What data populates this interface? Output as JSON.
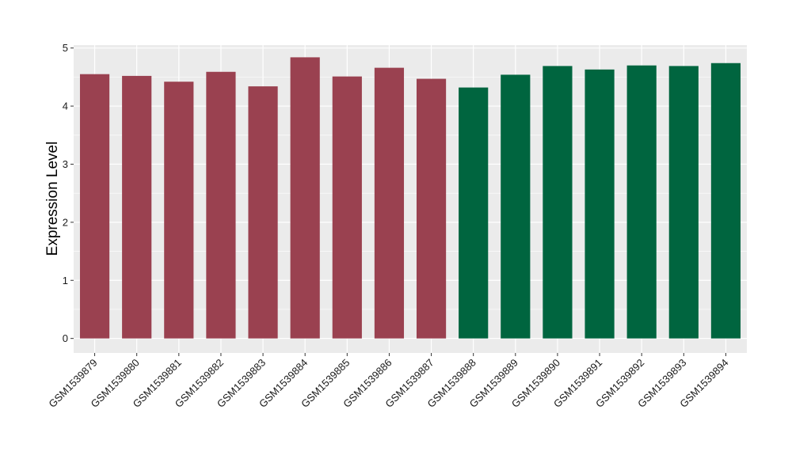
{
  "chart_data": {
    "type": "bar",
    "title": "",
    "xlabel": "",
    "ylabel": "Expression Level",
    "ylim": [
      -0.25,
      5.05
    ],
    "yticks": [
      0,
      1,
      2,
      3,
      4,
      5
    ],
    "grid": true,
    "legend": "none",
    "panel_color": "#ebebeb",
    "grid_color": "#ffffff",
    "categories": [
      "GSM1539879",
      "GSM1539880",
      "GSM1539881",
      "GSM1539882",
      "GSM1539883",
      "GSM1539884",
      "GSM1539885",
      "GSM1539886",
      "GSM1539887",
      "GSM1539888",
      "GSM1539889",
      "GSM1539890",
      "GSM1539891",
      "GSM1539892",
      "GSM1539893",
      "GSM1539894"
    ],
    "values": [
      4.55,
      4.52,
      4.42,
      4.59,
      4.34,
      4.84,
      4.51,
      4.66,
      4.47,
      4.32,
      4.54,
      4.69,
      4.63,
      4.7,
      4.69,
      4.74
    ],
    "group_colors": [
      "#9a4150",
      "#9a4150",
      "#9a4150",
      "#9a4150",
      "#9a4150",
      "#9a4150",
      "#9a4150",
      "#9a4150",
      "#9a4150",
      "#00653f",
      "#00653f",
      "#00653f",
      "#00653f",
      "#00653f",
      "#00653f",
      "#00653f"
    ]
  }
}
